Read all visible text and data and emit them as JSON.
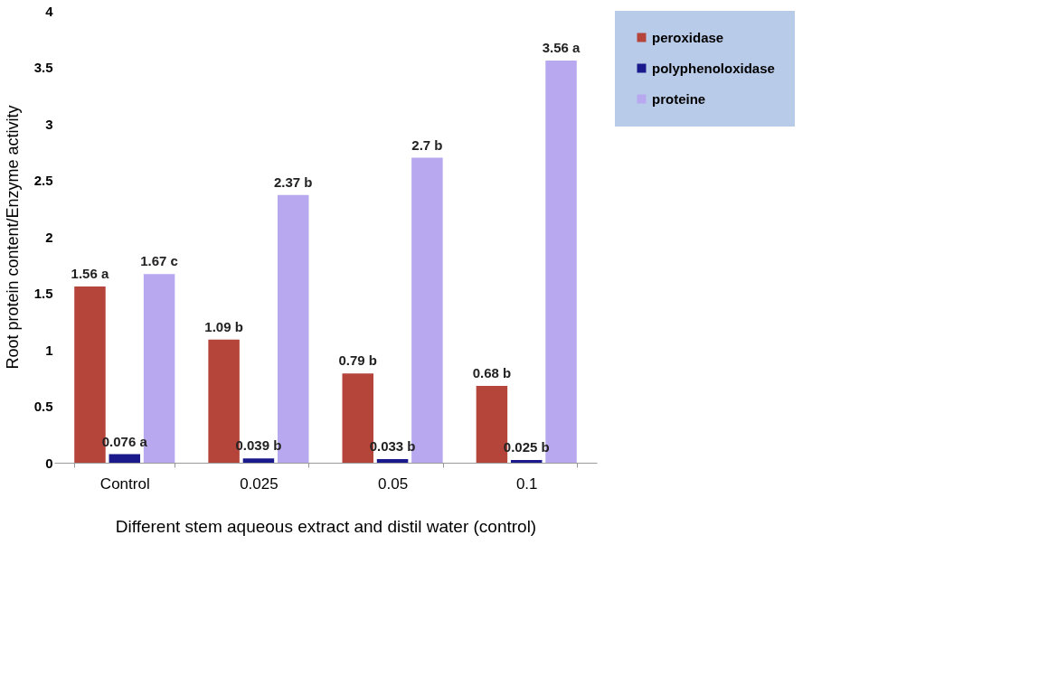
{
  "chart_data": {
    "type": "bar",
    "xlabel": "Different stem aqueous extract and distil water (control)",
    "ylabel": "Root protein content/Enzyme activity",
    "categories": [
      "Control",
      "0.025",
      "0.05",
      "0.1"
    ],
    "series": [
      {
        "name": "peroxidase",
        "color": "#b5443a",
        "values": [
          1.56,
          1.09,
          0.79,
          0.68
        ],
        "value_labels": [
          "1.56 a",
          "1.09 b",
          "0.79 b",
          "0.68 b"
        ]
      },
      {
        "name": "polyphenoloxidase",
        "color": "#1a1a8c",
        "values": [
          0.076,
          0.039,
          0.033,
          0.025
        ],
        "value_labels": [
          "0.076 a",
          "0.039 b",
          "0.033 b",
          "0.025 b"
        ]
      },
      {
        "name": "proteine",
        "color": "#b8a8f0",
        "values": [
          1.67,
          2.37,
          2.7,
          3.56
        ],
        "value_labels": [
          "1.67 c",
          "2.37 b",
          "2.7 b",
          "3.56 a"
        ]
      }
    ],
    "ylim": [
      0,
      4
    ],
    "yticks": [
      0,
      0.5,
      1,
      1.5,
      2,
      2.5,
      3,
      3.5,
      4
    ],
    "grid": false,
    "legend": "right"
  }
}
